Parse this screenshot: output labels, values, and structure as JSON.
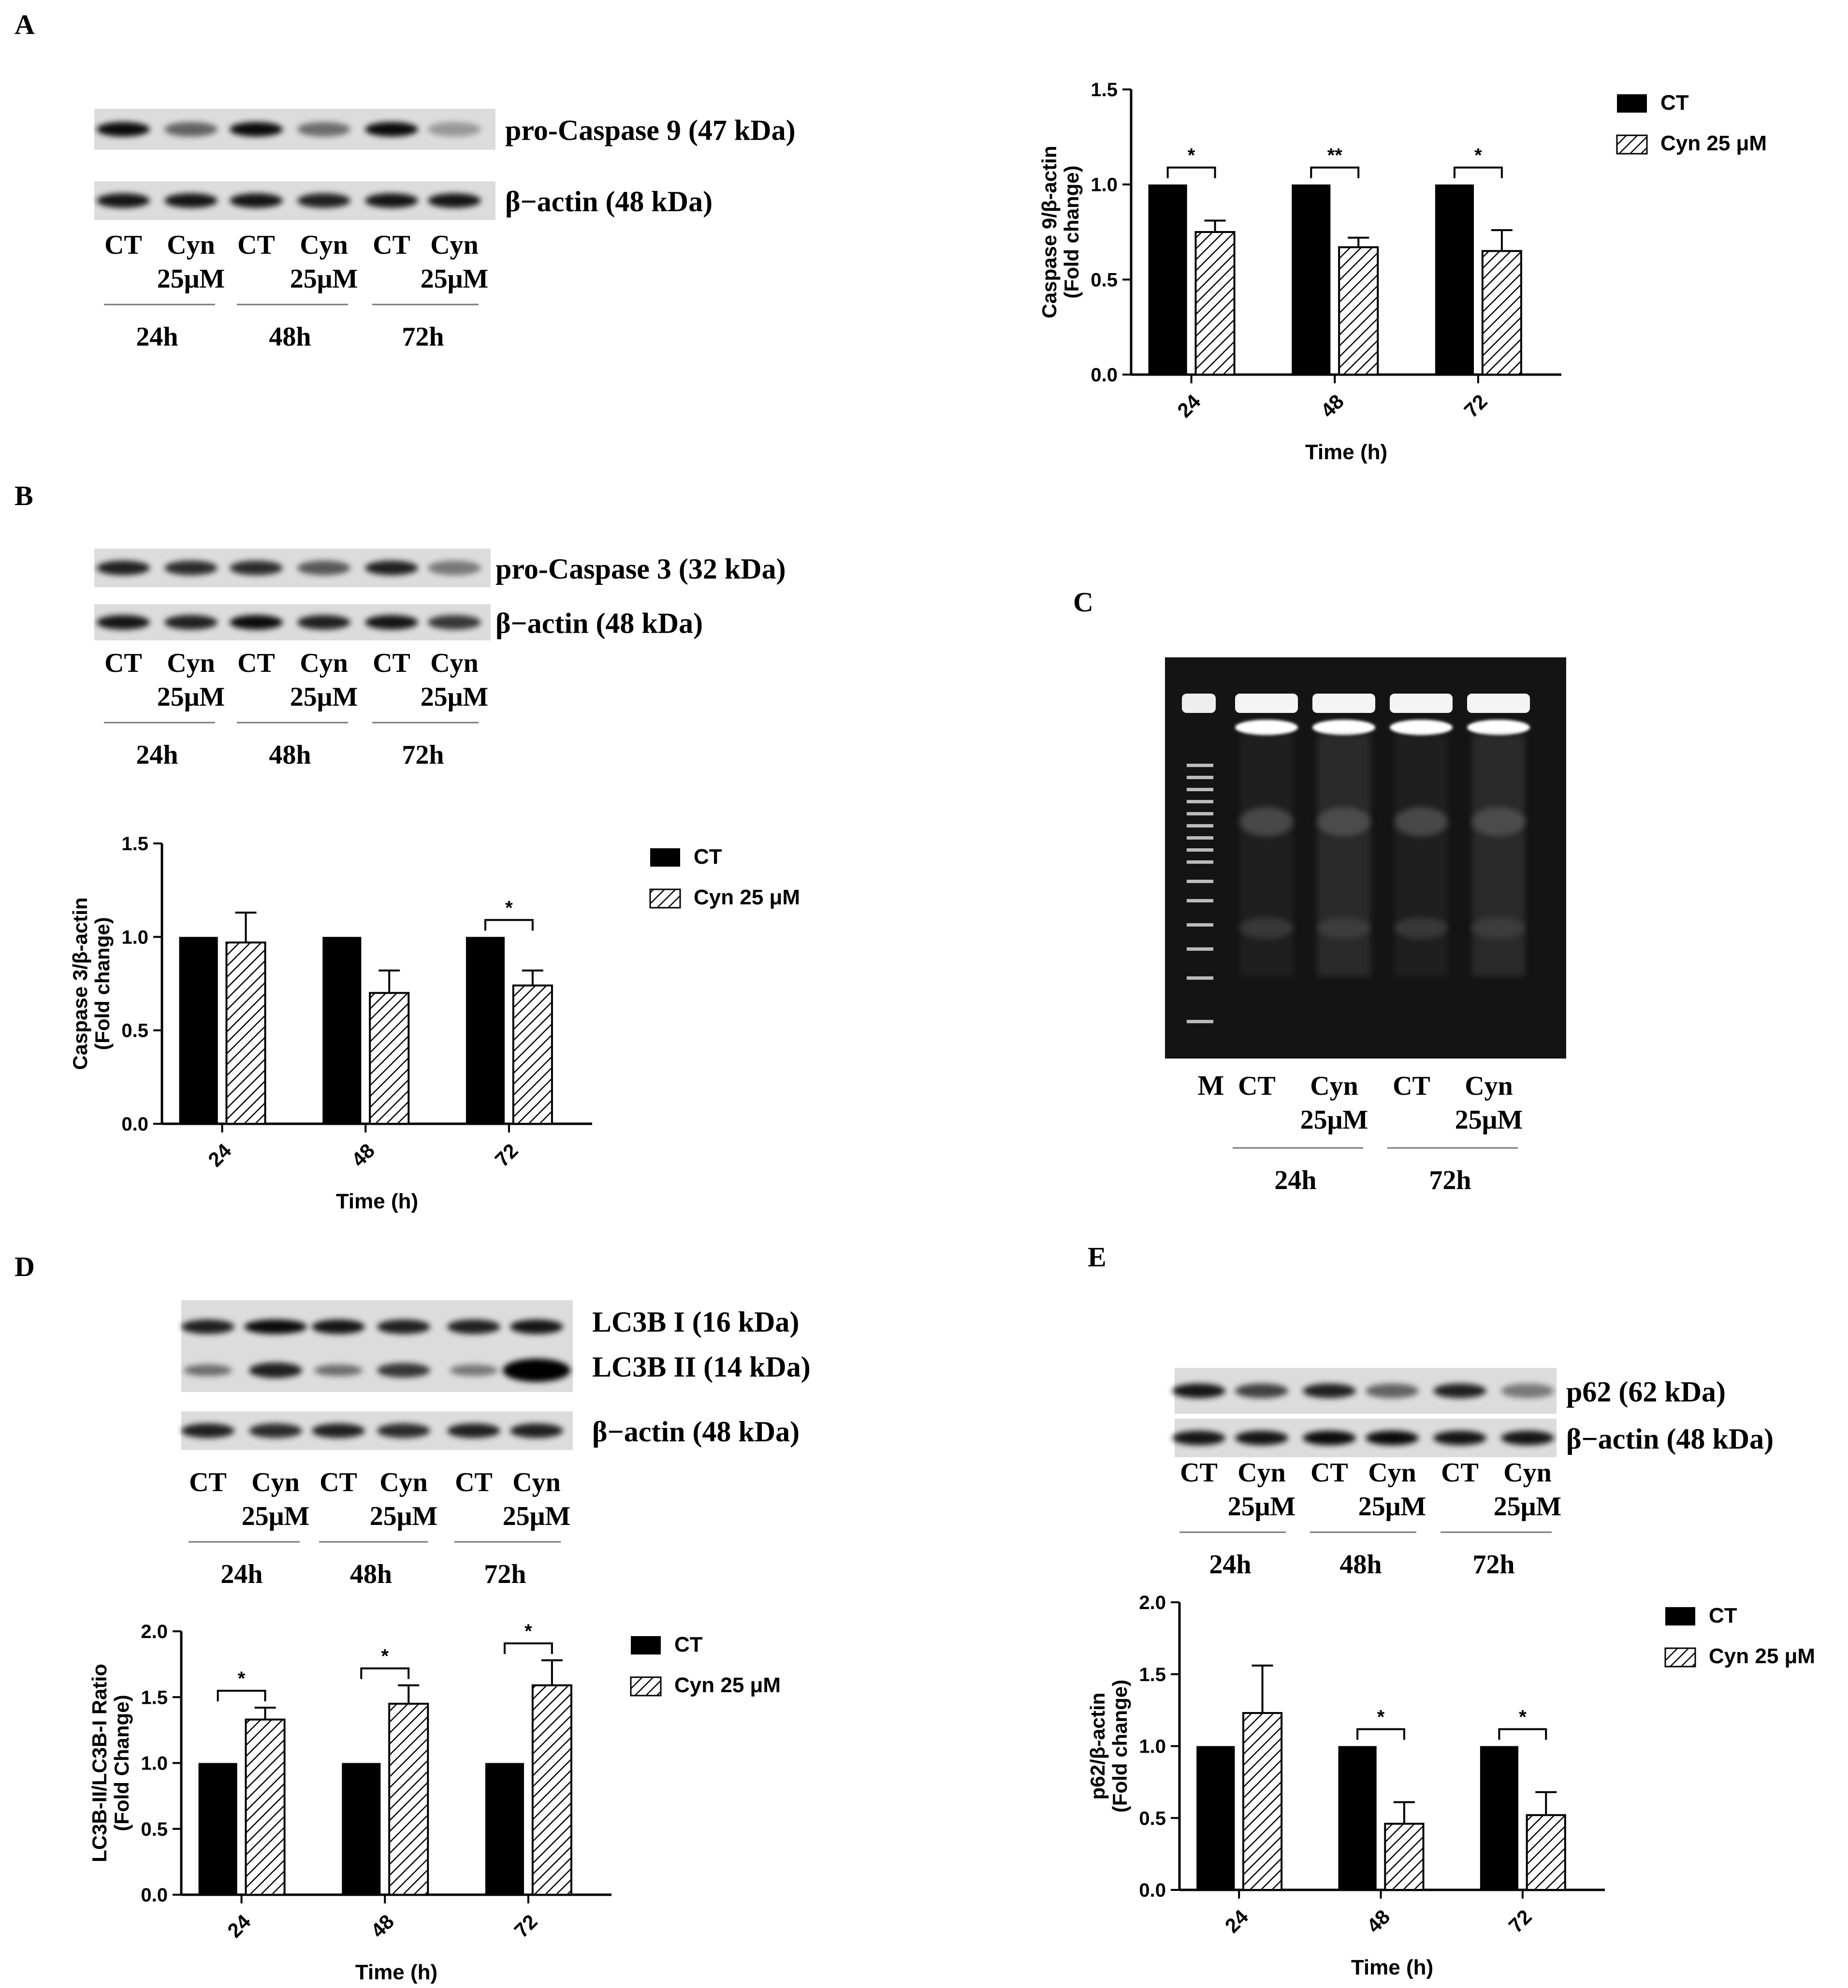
{
  "panels": [
    {
      "letter": "A",
      "blot": {
        "labels": [
          "pro-Caspase 9 (47 kDa)",
          "β−actin (48 kDa)"
        ],
        "lanes": [
          {
            "top": "CT",
            "sub": ""
          },
          {
            "top": "Cyn",
            "sub": "25μM"
          },
          {
            "top": "CT",
            "sub": ""
          },
          {
            "top": "Cyn",
            "sub": "25μM"
          },
          {
            "top": "CT",
            "sub": ""
          },
          {
            "top": "Cyn",
            "sub": "25μM"
          }
        ],
        "groups": [
          "24h",
          "48h",
          "72h"
        ]
      }
    },
    {
      "letter": "B",
      "blot": {
        "labels": [
          "pro-Caspase 3 (32 kDa)",
          "β−actin (48 kDa)"
        ],
        "lanes": [
          {
            "top": "CT",
            "sub": ""
          },
          {
            "top": "Cyn",
            "sub": "25μM"
          },
          {
            "top": "CT",
            "sub": ""
          },
          {
            "top": "Cyn",
            "sub": "25μM"
          },
          {
            "top": "CT",
            "sub": ""
          },
          {
            "top": "Cyn",
            "sub": "25μM"
          }
        ],
        "groups": [
          "24h",
          "48h",
          "72h"
        ]
      }
    },
    {
      "letter": "C",
      "gel": {
        "marker": "M",
        "lanes": [
          {
            "top": "CT",
            "sub": ""
          },
          {
            "top": "Cyn",
            "sub": "25μM"
          },
          {
            "top": "CT",
            "sub": ""
          },
          {
            "top": "Cyn",
            "sub": "25μM"
          }
        ],
        "groups": [
          "24h",
          "72h"
        ]
      }
    },
    {
      "letter": "D",
      "blot": {
        "labels": [
          "LC3B I  (16 kDa)",
          "LC3B II (14 kDa)",
          "β−actin (48 kDa)"
        ],
        "lanes": [
          {
            "top": "CT",
            "sub": ""
          },
          {
            "top": "Cyn",
            "sub": "25μM"
          },
          {
            "top": "CT",
            "sub": ""
          },
          {
            "top": "Cyn",
            "sub": "25μM"
          },
          {
            "top": "CT",
            "sub": ""
          },
          {
            "top": "Cyn",
            "sub": "25μM"
          }
        ],
        "groups": [
          "24h",
          "48h",
          "72h"
        ]
      }
    },
    {
      "letter": "E",
      "blot": {
        "labels": [
          "p62 (62 kDa)",
          "β−actin (48 kDa)"
        ],
        "lanes": [
          {
            "top": "CT",
            "sub": ""
          },
          {
            "top": "Cyn",
            "sub": "25μM"
          },
          {
            "top": "CT",
            "sub": ""
          },
          {
            "top": "Cyn",
            "sub": "25μM"
          },
          {
            "top": "CT",
            "sub": ""
          },
          {
            "top": "Cyn",
            "sub": "25μM"
          }
        ],
        "groups": [
          "24h",
          "48h",
          "72h"
        ]
      }
    }
  ],
  "legend": {
    "ct": "CT",
    "cyn": "Cyn 25 μM"
  },
  "chart_data": [
    {
      "id": "A",
      "type": "bar",
      "categories": [
        "24",
        "48",
        "72"
      ],
      "xlabel": "Time (h)",
      "ylabel": [
        "Caspase 9/β-actin",
        "(Fold change)"
      ],
      "ylim": [
        0,
        1.5
      ],
      "yticks": [
        "0.0",
        "0.5",
        "1.0",
        "1.5"
      ],
      "series": [
        {
          "name": "CT",
          "values": [
            1.0,
            1.0,
            1.0
          ],
          "errors": [
            0,
            0,
            0
          ]
        },
        {
          "name": "Cyn 25 μM",
          "values": [
            0.75,
            0.67,
            0.65
          ],
          "errors": [
            0.06,
            0.05,
            0.11
          ]
        }
      ],
      "significance": [
        "*",
        "**",
        "*"
      ],
      "legend": "top-right"
    },
    {
      "id": "B",
      "type": "bar",
      "categories": [
        "24",
        "48",
        "72"
      ],
      "xlabel": "Time (h)",
      "ylabel": [
        "Caspase 3/β-actin",
        "(Fold change)"
      ],
      "ylim": [
        0,
        1.5
      ],
      "yticks": [
        "0.0",
        "0.5",
        "1.0",
        "1.5"
      ],
      "series": [
        {
          "name": "CT",
          "values": [
            1.0,
            1.0,
            1.0
          ],
          "errors": [
            0,
            0,
            0
          ]
        },
        {
          "name": "Cyn 25 μM",
          "values": [
            0.97,
            0.7,
            0.74
          ],
          "errors": [
            0.16,
            0.12,
            0.08
          ]
        }
      ],
      "significance": [
        "",
        "",
        "*"
      ],
      "legend": "top-right"
    },
    {
      "id": "D",
      "type": "bar",
      "categories": [
        "24",
        "48",
        "72"
      ],
      "xlabel": "Time (h)",
      "ylabel": [
        "LC3B-II/LC3B-I Ratio",
        "(Fold Change)"
      ],
      "ylim": [
        0,
        2.0
      ],
      "yticks": [
        "0.0",
        "0.5",
        "1.0",
        "1.5",
        "2.0"
      ],
      "series": [
        {
          "name": "CT",
          "values": [
            1.0,
            1.0,
            1.0
          ],
          "errors": [
            0,
            0,
            0
          ]
        },
        {
          "name": "Cyn 25 μM",
          "values": [
            1.33,
            1.45,
            1.59
          ],
          "errors": [
            0.09,
            0.14,
            0.19
          ]
        }
      ],
      "significance": [
        "*",
        "*",
        "*"
      ],
      "legend": "top-right"
    },
    {
      "id": "E",
      "type": "bar",
      "categories": [
        "24",
        "48",
        "72"
      ],
      "xlabel": "Time (h)",
      "ylabel": [
        "p62/β-actin",
        "(Fold change)"
      ],
      "ylim": [
        0,
        2.0
      ],
      "yticks": [
        "0.0",
        "0.5",
        "1.0",
        "1.5",
        "2.0"
      ],
      "series": [
        {
          "name": "CT",
          "values": [
            1.0,
            1.0,
            1.0
          ],
          "errors": [
            0,
            0,
            0
          ]
        },
        {
          "name": "Cyn 25 μM",
          "values": [
            1.23,
            0.46,
            0.52
          ],
          "errors": [
            0.33,
            0.15,
            0.16
          ]
        }
      ],
      "significance": [
        "",
        "*",
        "*"
      ],
      "legend": "top-right"
    }
  ]
}
